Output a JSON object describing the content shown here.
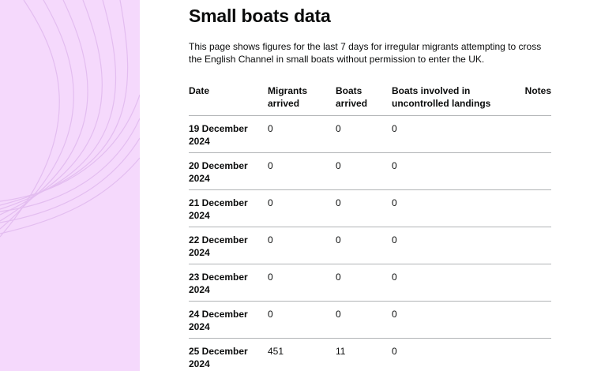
{
  "page": {
    "title": "Small boats data",
    "intro": "This page shows figures for the last 7 days for irregular migrants attempting to cross the English Channel in small boats without permission to enter the UK."
  },
  "table": {
    "headers": {
      "date": "Date",
      "migrants": "Migrants arrived",
      "boats": "Boats arrived",
      "uncontrolled": "Boats involved in uncontrolled landings",
      "notes": "Notes"
    },
    "rows": [
      {
        "date": "19 December 2024",
        "migrants": "0",
        "boats": "0",
        "uncontrolled": "0",
        "notes": ""
      },
      {
        "date": "20 December 2024",
        "migrants": "0",
        "boats": "0",
        "uncontrolled": "0",
        "notes": ""
      },
      {
        "date": "21 December 2024",
        "migrants": "0",
        "boats": "0",
        "uncontrolled": "0",
        "notes": ""
      },
      {
        "date": "22 December 2024",
        "migrants": "0",
        "boats": "0",
        "uncontrolled": "0",
        "notes": ""
      },
      {
        "date": "23 December 2024",
        "migrants": "0",
        "boats": "0",
        "uncontrolled": "0",
        "notes": ""
      },
      {
        "date": "24 December 2024",
        "migrants": "0",
        "boats": "0",
        "uncontrolled": "0",
        "notes": ""
      },
      {
        "date": "25 December 2024",
        "migrants": "451",
        "boats": "11",
        "uncontrolled": "0",
        "notes": ""
      }
    ]
  },
  "colors": {
    "side_panel": "#f5d9fc",
    "side_lines": "#e3bdf0",
    "text": "#0b0c0c",
    "border": "#b1b4b6"
  }
}
